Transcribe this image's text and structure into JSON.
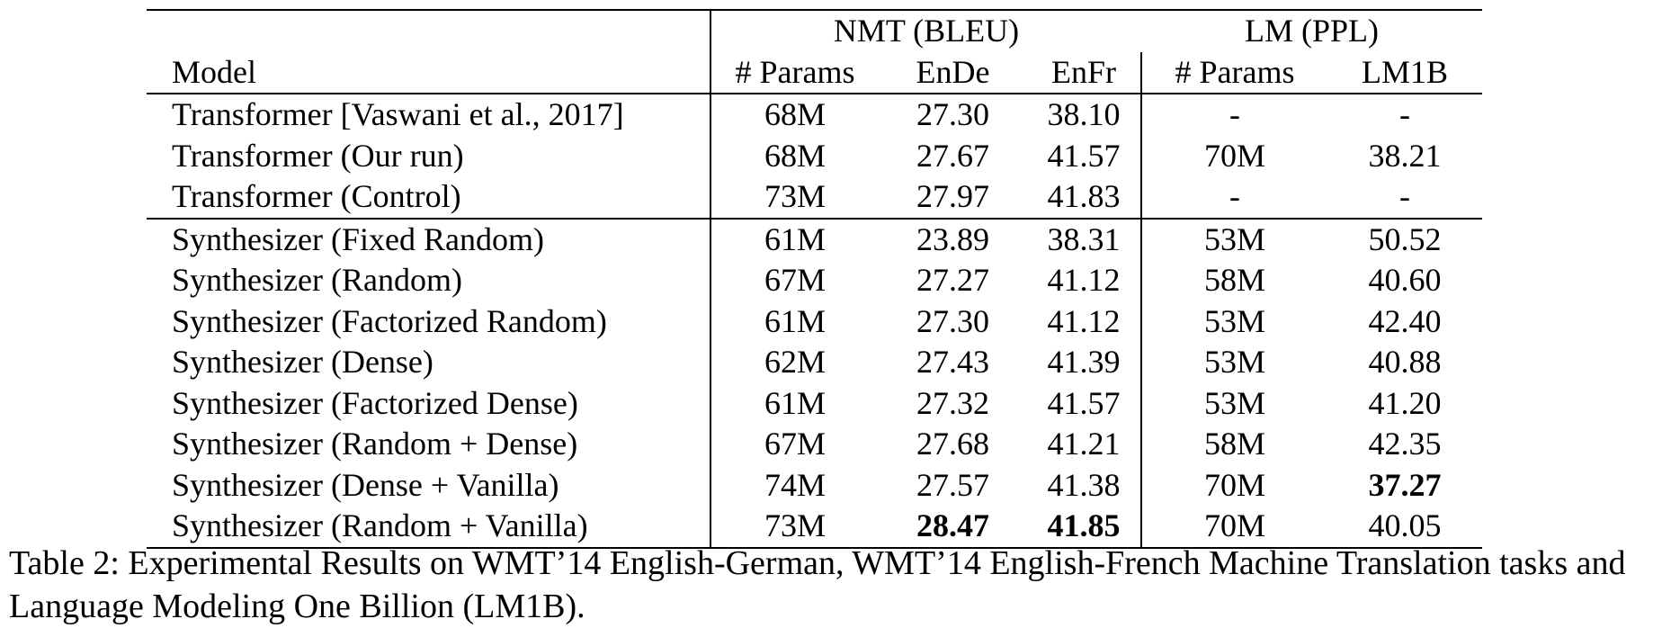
{
  "table": {
    "group_headers": {
      "nmt": "NMT (BLEU)",
      "lm": "LM (PPL)"
    },
    "column_headers": {
      "model": "Model",
      "nmt_params": "# Params",
      "ende": "EnDe",
      "enfr": "EnFr",
      "lm_params": "# Params",
      "lm1b": "LM1B"
    },
    "rows": [
      {
        "model": "Transformer [Vaswani et al., 2017]",
        "nmt_params": "68M",
        "ende": "27.30",
        "enfr": "38.10",
        "lm_params": "-",
        "lm1b": "-"
      },
      {
        "model": "Transformer (Our run)",
        "nmt_params": "68M",
        "ende": "27.67",
        "enfr": "41.57",
        "lm_params": "70M",
        "lm1b": "38.21"
      },
      {
        "model": "Transformer (Control)",
        "nmt_params": "73M",
        "ende": "27.97",
        "enfr": "41.83",
        "lm_params": "-",
        "lm1b": "-"
      },
      {
        "model": "Synthesizer (Fixed Random)",
        "nmt_params": "61M",
        "ende": "23.89",
        "enfr": "38.31",
        "lm_params": "53M",
        "lm1b": "50.52"
      },
      {
        "model": "Synthesizer (Random)",
        "nmt_params": "67M",
        "ende": "27.27",
        "enfr": "41.12",
        "lm_params": "58M",
        "lm1b": "40.60"
      },
      {
        "model": "Synthesizer (Factorized Random)",
        "nmt_params": "61M",
        "ende": "27.30",
        "enfr": "41.12",
        "lm_params": "53M",
        "lm1b": "42.40"
      },
      {
        "model": "Synthesizer (Dense)",
        "nmt_params": "62M",
        "ende": "27.43",
        "enfr": "41.39",
        "lm_params": "53M",
        "lm1b": "40.88"
      },
      {
        "model": "Synthesizer (Factorized Dense)",
        "nmt_params": "61M",
        "ende": "27.32",
        "enfr": "41.57",
        "lm_params": "53M",
        "lm1b": "41.20"
      },
      {
        "model": "Synthesizer (Random + Dense)",
        "nmt_params": "67M",
        "ende": "27.68",
        "enfr": "41.21",
        "lm_params": "58M",
        "lm1b": "42.35"
      },
      {
        "model": "Synthesizer (Dense + Vanilla)",
        "nmt_params": "74M",
        "ende": "27.57",
        "enfr": "41.38",
        "lm_params": "70M",
        "lm1b": "37.27"
      },
      {
        "model": "Synthesizer (Random + Vanilla)",
        "nmt_params": "73M",
        "ende": "28.47",
        "enfr": "41.85",
        "lm_params": "70M",
        "lm1b": "40.05"
      }
    ]
  },
  "caption": "Table 2: Experimental Results on WMT’14 English-German, WMT’14 English-French Machine Translation tasks and Language Modeling One Billion (LM1B)."
}
